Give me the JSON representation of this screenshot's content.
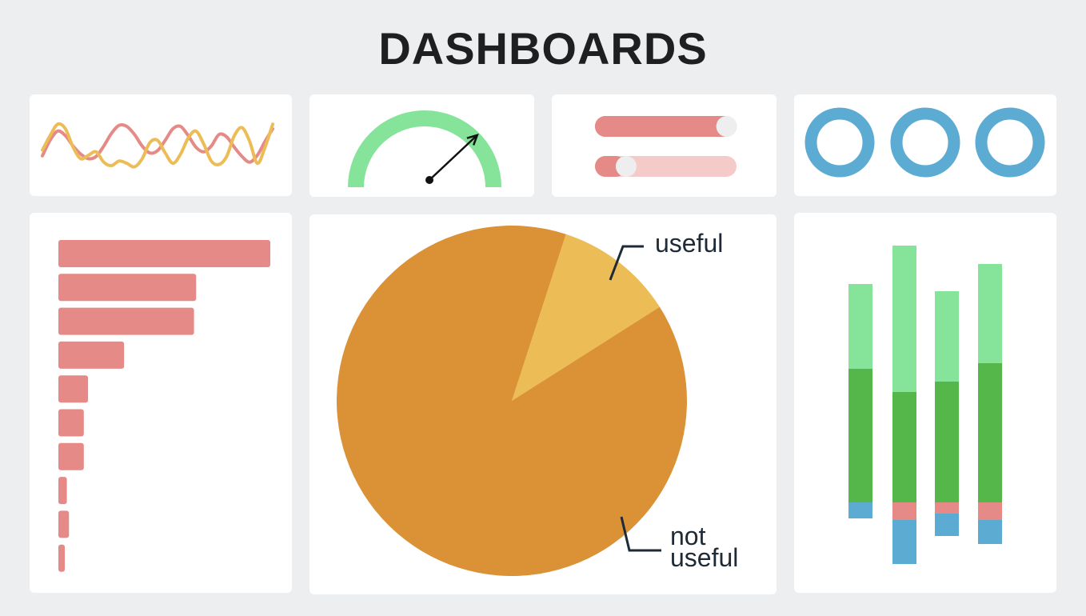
{
  "page": {
    "title": "DASHBOARDS"
  },
  "colors": {
    "background": "#edeef0",
    "card": "#ffffff",
    "salmon": "#e58a86",
    "salmon_light": "#f5cbc9",
    "gold": "#ecbd56",
    "orange": "#db9136",
    "green_light": "#86e39a",
    "green": "#55b649",
    "blue": "#5cabd3",
    "knob": "#eeeeee",
    "ink": "#1e2a36"
  },
  "widgets": {
    "sliders": [
      {
        "fill_fraction": 0.93,
        "knob_fraction": 0.93
      },
      {
        "fill_fraction": 0.22,
        "knob_fraction": 0.22
      }
    ],
    "gauge": {
      "needle_fraction": 0.76
    },
    "rings": [
      {
        "icon": "ring-icon"
      },
      {
        "icon": "ring-icon"
      },
      {
        "icon": "ring-icon"
      }
    ]
  },
  "chart_data": [
    {
      "type": "line",
      "title": "",
      "x": [
        0,
        1,
        2,
        3,
        4,
        5,
        6,
        7,
        8,
        9,
        10,
        11,
        12,
        13,
        14,
        15,
        16,
        17,
        18,
        19,
        20,
        21,
        22,
        23,
        24,
        25,
        26,
        27,
        28,
        29,
        30
      ],
      "series": [
        {
          "color": "#e58a86",
          "values": [
            0.35,
            0.62,
            0.78,
            0.7,
            0.52,
            0.38,
            0.3,
            0.34,
            0.52,
            0.74,
            0.88,
            0.86,
            0.72,
            0.52,
            0.4,
            0.44,
            0.62,
            0.82,
            0.86,
            0.7,
            0.5,
            0.42,
            0.52,
            0.72,
            0.68,
            0.5,
            0.34,
            0.24,
            0.36,
            0.6,
            0.82
          ]
        },
        {
          "color": "#ecbd56",
          "values": [
            0.45,
            0.7,
            0.9,
            0.82,
            0.5,
            0.3,
            0.36,
            0.42,
            0.24,
            0.18,
            0.26,
            0.22,
            0.16,
            0.3,
            0.58,
            0.62,
            0.4,
            0.22,
            0.38,
            0.66,
            0.78,
            0.56,
            0.26,
            0.2,
            0.34,
            0.7,
            0.84,
            0.6,
            0.22,
            0.5,
            0.9
          ]
        }
      ]
    },
    {
      "type": "bar",
      "title": "",
      "orientation": "horizontal",
      "values": [
        100,
        65,
        64,
        31,
        14,
        12,
        12,
        4,
        5,
        2
      ],
      "xlim": [
        0,
        100
      ]
    },
    {
      "type": "pie",
      "title": "",
      "slices": [
        {
          "label": "useful",
          "value": 11,
          "color": "#ecbd56"
        },
        {
          "label": "not useful",
          "value": 89,
          "color": "#db9136"
        }
      ],
      "labels": {
        "useful": "useful",
        "not_line1": "not",
        "not_line2": "useful"
      }
    },
    {
      "type": "bar",
      "title": "",
      "stacked": true,
      "diverging": true,
      "categories": [
        "1",
        "2",
        "3",
        "4"
      ],
      "series": [
        {
          "color": "#86e39a",
          "values": [
            106,
            183,
            113,
            124
          ]
        },
        {
          "color": "#55b649",
          "values": [
            167,
            138,
            151,
            174
          ]
        },
        {
          "color": "#e58a86",
          "values": [
            0,
            22,
            14,
            22
          ]
        },
        {
          "color": "#5cabd3",
          "values": [
            20,
            55,
            28,
            30
          ]
        }
      ],
      "positive_series": 2
    }
  ]
}
